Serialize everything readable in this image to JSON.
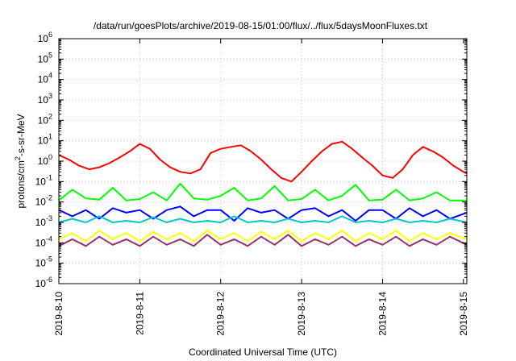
{
  "chart_data": {
    "type": "line",
    "title": "/data/run/goesPlots/archive/2019-08-15/01:00/flux/../flux/5daysMoonFluxes.txt",
    "xlabel": "Coordinated Universal Time (UTC)",
    "ylabel": {
      "pre": "protons/cm",
      "sup": "2",
      "post": "-s-sr-MeV"
    },
    "xscale": "time",
    "yscale": "log",
    "grid": true,
    "legend": "none",
    "xlim": [
      "2019-08-10 00:00",
      "2019-08-15 01:00"
    ],
    "ylim": [
      1e-06,
      1000000.0
    ],
    "xticks": [
      {
        "value": "2019-08-10",
        "label": "2019-8-10"
      },
      {
        "value": "2019-08-11",
        "label": "2019-8-11"
      },
      {
        "value": "2019-08-12",
        "label": "2019-8-12"
      },
      {
        "value": "2019-08-13",
        "label": "2019-8-13"
      },
      {
        "value": "2019-08-14",
        "label": "2019-8-14"
      },
      {
        "value": "2019-08-15",
        "label": "2019-8-15"
      }
    ],
    "yticks": [
      {
        "value": 1e-06,
        "base": "10",
        "exp": "-6"
      },
      {
        "value": 1e-05,
        "base": "10",
        "exp": "-5"
      },
      {
        "value": 0.0001,
        "base": "10",
        "exp": "-4"
      },
      {
        "value": 0.001,
        "base": "10",
        "exp": "-3"
      },
      {
        "value": 0.01,
        "base": "10",
        "exp": "-2"
      },
      {
        "value": 0.1,
        "base": "10",
        "exp": "-1"
      },
      {
        "value": 1,
        "base": "10",
        "exp": "0"
      },
      {
        "value": 10,
        "base": "10",
        "exp": "1"
      },
      {
        "value": 100,
        "base": "10",
        "exp": "2"
      },
      {
        "value": 1000,
        "base": "10",
        "exp": "3"
      },
      {
        "value": 10000,
        "base": "10",
        "exp": "4"
      },
      {
        "value": 100000,
        "base": "10",
        "exp": "5"
      },
      {
        "value": 1000000,
        "base": "10",
        "exp": "6"
      }
    ],
    "series": [
      {
        "color": "#ff0000",
        "x": [
          "2019-08-10 00:00",
          "2019-08-10 03:00",
          "2019-08-10 06:00",
          "2019-08-10 09:00",
          "2019-08-10 12:00",
          "2019-08-10 15:00",
          "2019-08-10 18:00",
          "2019-08-10 21:00",
          "2019-08-11 00:00",
          "2019-08-11 03:00",
          "2019-08-11 06:00",
          "2019-08-11 09:00",
          "2019-08-11 12:00",
          "2019-08-11 15:00",
          "2019-08-11 18:00",
          "2019-08-11 21:00",
          "2019-08-12 00:00",
          "2019-08-12 03:00",
          "2019-08-12 06:00",
          "2019-08-12 09:00",
          "2019-08-12 12:00",
          "2019-08-12 15:00",
          "2019-08-12 18:00",
          "2019-08-12 21:00",
          "2019-08-13 00:00",
          "2019-08-13 03:00",
          "2019-08-13 06:00",
          "2019-08-13 09:00",
          "2019-08-13 12:00",
          "2019-08-13 15:00",
          "2019-08-13 18:00",
          "2019-08-13 21:00",
          "2019-08-14 00:00",
          "2019-08-14 03:00",
          "2019-08-14 06:00",
          "2019-08-14 09:00",
          "2019-08-14 12:00",
          "2019-08-14 15:00",
          "2019-08-14 18:00",
          "2019-08-14 21:00",
          "2019-08-15 00:00",
          "2019-08-15 01:00"
        ],
        "values": [
          2,
          1.2,
          0.6,
          0.4,
          0.5,
          0.8,
          1.5,
          3,
          7,
          4,
          1.2,
          0.5,
          0.3,
          0.25,
          0.4,
          2.5,
          4,
          5,
          6,
          3,
          1.2,
          0.4,
          0.15,
          0.1,
          0.3,
          1,
          3,
          7,
          9,
          4,
          1.5,
          0.6,
          0.2,
          0.15,
          0.4,
          2,
          5,
          3,
          1.5,
          0.6,
          0.3,
          0.25
        ]
      },
      {
        "color": "#00ff00",
        "x": [
          "2019-08-10 00:00",
          "2019-08-10 04:00",
          "2019-08-10 08:00",
          "2019-08-10 12:00",
          "2019-08-10 16:00",
          "2019-08-10 20:00",
          "2019-08-11 00:00",
          "2019-08-11 04:00",
          "2019-08-11 08:00",
          "2019-08-11 12:00",
          "2019-08-11 16:00",
          "2019-08-11 20:00",
          "2019-08-12 00:00",
          "2019-08-12 04:00",
          "2019-08-12 08:00",
          "2019-08-12 12:00",
          "2019-08-12 16:00",
          "2019-08-12 20:00",
          "2019-08-13 00:00",
          "2019-08-13 04:00",
          "2019-08-13 08:00",
          "2019-08-13 12:00",
          "2019-08-13 16:00",
          "2019-08-13 20:00",
          "2019-08-14 00:00",
          "2019-08-14 04:00",
          "2019-08-14 08:00",
          "2019-08-14 12:00",
          "2019-08-14 16:00",
          "2019-08-14 20:00",
          "2019-08-15 01:00"
        ],
        "values": [
          0.012,
          0.04,
          0.015,
          0.013,
          0.05,
          0.012,
          0.014,
          0.03,
          0.012,
          0.08,
          0.015,
          0.013,
          0.02,
          0.05,
          0.012,
          0.015,
          0.06,
          0.012,
          0.014,
          0.04,
          0.012,
          0.02,
          0.07,
          0.012,
          0.013,
          0.04,
          0.012,
          0.015,
          0.03,
          0.012,
          0.012
        ]
      },
      {
        "color": "#0000ff",
        "x": [
          "2019-08-10 00:00",
          "2019-08-10 04:00",
          "2019-08-10 08:00",
          "2019-08-10 12:00",
          "2019-08-10 16:00",
          "2019-08-10 20:00",
          "2019-08-11 00:00",
          "2019-08-11 04:00",
          "2019-08-11 08:00",
          "2019-08-11 12:00",
          "2019-08-11 16:00",
          "2019-08-11 20:00",
          "2019-08-12 00:00",
          "2019-08-12 04:00",
          "2019-08-12 08:00",
          "2019-08-12 12:00",
          "2019-08-12 16:00",
          "2019-08-12 20:00",
          "2019-08-13 00:00",
          "2019-08-13 04:00",
          "2019-08-13 08:00",
          "2019-08-13 12:00",
          "2019-08-13 16:00",
          "2019-08-13 20:00",
          "2019-08-14 00:00",
          "2019-08-14 04:00",
          "2019-08-14 08:00",
          "2019-08-14 12:00",
          "2019-08-14 16:00",
          "2019-08-14 20:00",
          "2019-08-15 01:00"
        ],
        "values": [
          0.004,
          0.002,
          0.004,
          0.0015,
          0.005,
          0.003,
          0.004,
          0.0015,
          0.004,
          0.006,
          0.002,
          0.004,
          0.004,
          0.0012,
          0.005,
          0.003,
          0.004,
          0.0015,
          0.004,
          0.005,
          0.002,
          0.004,
          0.0012,
          0.004,
          0.004,
          0.0015,
          0.005,
          0.002,
          0.004,
          0.0015,
          0.003
        ]
      },
      {
        "color": "#00c8c8",
        "x": [
          "2019-08-10 00:00",
          "2019-08-10 04:00",
          "2019-08-10 08:00",
          "2019-08-10 12:00",
          "2019-08-10 16:00",
          "2019-08-10 20:00",
          "2019-08-11 00:00",
          "2019-08-11 04:00",
          "2019-08-11 08:00",
          "2019-08-11 12:00",
          "2019-08-11 16:00",
          "2019-08-11 20:00",
          "2019-08-12 00:00",
          "2019-08-12 04:00",
          "2019-08-12 08:00",
          "2019-08-12 12:00",
          "2019-08-12 16:00",
          "2019-08-12 20:00",
          "2019-08-13 00:00",
          "2019-08-13 04:00",
          "2019-08-13 08:00",
          "2019-08-13 12:00",
          "2019-08-13 16:00",
          "2019-08-13 20:00",
          "2019-08-14 00:00",
          "2019-08-14 04:00",
          "2019-08-14 08:00",
          "2019-08-14 12:00",
          "2019-08-14 16:00",
          "2019-08-14 20:00",
          "2019-08-15 01:00"
        ],
        "values": [
          0.001,
          0.0015,
          0.001,
          0.002,
          0.001,
          0.0012,
          0.001,
          0.0018,
          0.001,
          0.0015,
          0.001,
          0.0012,
          0.001,
          0.002,
          0.001,
          0.0012,
          0.001,
          0.0015,
          0.001,
          0.0012,
          0.001,
          0.002,
          0.001,
          0.0012,
          0.001,
          0.0015,
          0.001,
          0.0012,
          0.001,
          0.0015,
          0.001
        ]
      },
      {
        "color": "#ffff00",
        "x": [
          "2019-08-10 00:00",
          "2019-08-10 04:00",
          "2019-08-10 08:00",
          "2019-08-10 12:00",
          "2019-08-10 16:00",
          "2019-08-10 20:00",
          "2019-08-11 00:00",
          "2019-08-11 04:00",
          "2019-08-11 08:00",
          "2019-08-11 12:00",
          "2019-08-11 16:00",
          "2019-08-11 20:00",
          "2019-08-12 00:00",
          "2019-08-12 04:00",
          "2019-08-12 08:00",
          "2019-08-12 12:00",
          "2019-08-12 16:00",
          "2019-08-12 20:00",
          "2019-08-13 00:00",
          "2019-08-13 04:00",
          "2019-08-13 08:00",
          "2019-08-13 12:00",
          "2019-08-13 16:00",
          "2019-08-13 20:00",
          "2019-08-14 00:00",
          "2019-08-14 04:00",
          "2019-08-14 08:00",
          "2019-08-14 12:00",
          "2019-08-14 16:00",
          "2019-08-14 20:00",
          "2019-08-15 01:00"
        ],
        "values": [
          0.00015,
          0.0003,
          0.00012,
          0.0004,
          0.00015,
          0.0003,
          0.00012,
          0.00035,
          0.00015,
          0.0003,
          0.00012,
          0.0004,
          0.00015,
          0.0003,
          0.00012,
          0.00035,
          0.00015,
          0.0004,
          0.00012,
          0.0003,
          0.00015,
          0.0004,
          0.00012,
          0.0003,
          0.00015,
          0.0004,
          0.00012,
          0.0003,
          0.00015,
          0.0003,
          0.00015
        ]
      },
      {
        "color": "#993366",
        "x": [
          "2019-08-10 00:00",
          "2019-08-10 04:00",
          "2019-08-10 08:00",
          "2019-08-10 12:00",
          "2019-08-10 16:00",
          "2019-08-10 20:00",
          "2019-08-11 00:00",
          "2019-08-11 04:00",
          "2019-08-11 08:00",
          "2019-08-11 12:00",
          "2019-08-11 16:00",
          "2019-08-11 20:00",
          "2019-08-12 00:00",
          "2019-08-12 04:00",
          "2019-08-12 08:00",
          "2019-08-12 12:00",
          "2019-08-12 16:00",
          "2019-08-12 20:00",
          "2019-08-13 00:00",
          "2019-08-13 04:00",
          "2019-08-13 08:00",
          "2019-08-13 12:00",
          "2019-08-13 16:00",
          "2019-08-13 20:00",
          "2019-08-14 00:00",
          "2019-08-14 04:00",
          "2019-08-14 08:00",
          "2019-08-14 12:00",
          "2019-08-14 16:00",
          "2019-08-14 20:00",
          "2019-08-15 01:00"
        ],
        "values": [
          7e-05,
          0.00015,
          7e-05,
          0.0002,
          8e-05,
          0.00015,
          7e-05,
          0.0002,
          8e-05,
          0.00015,
          7e-05,
          0.00025,
          8e-05,
          0.00015,
          7e-05,
          0.0002,
          8e-05,
          0.00025,
          7e-05,
          0.00015,
          8e-05,
          0.0002,
          7e-05,
          0.00015,
          8e-05,
          0.0002,
          7e-05,
          0.00015,
          8e-05,
          0.0002,
          8e-05
        ]
      }
    ]
  }
}
